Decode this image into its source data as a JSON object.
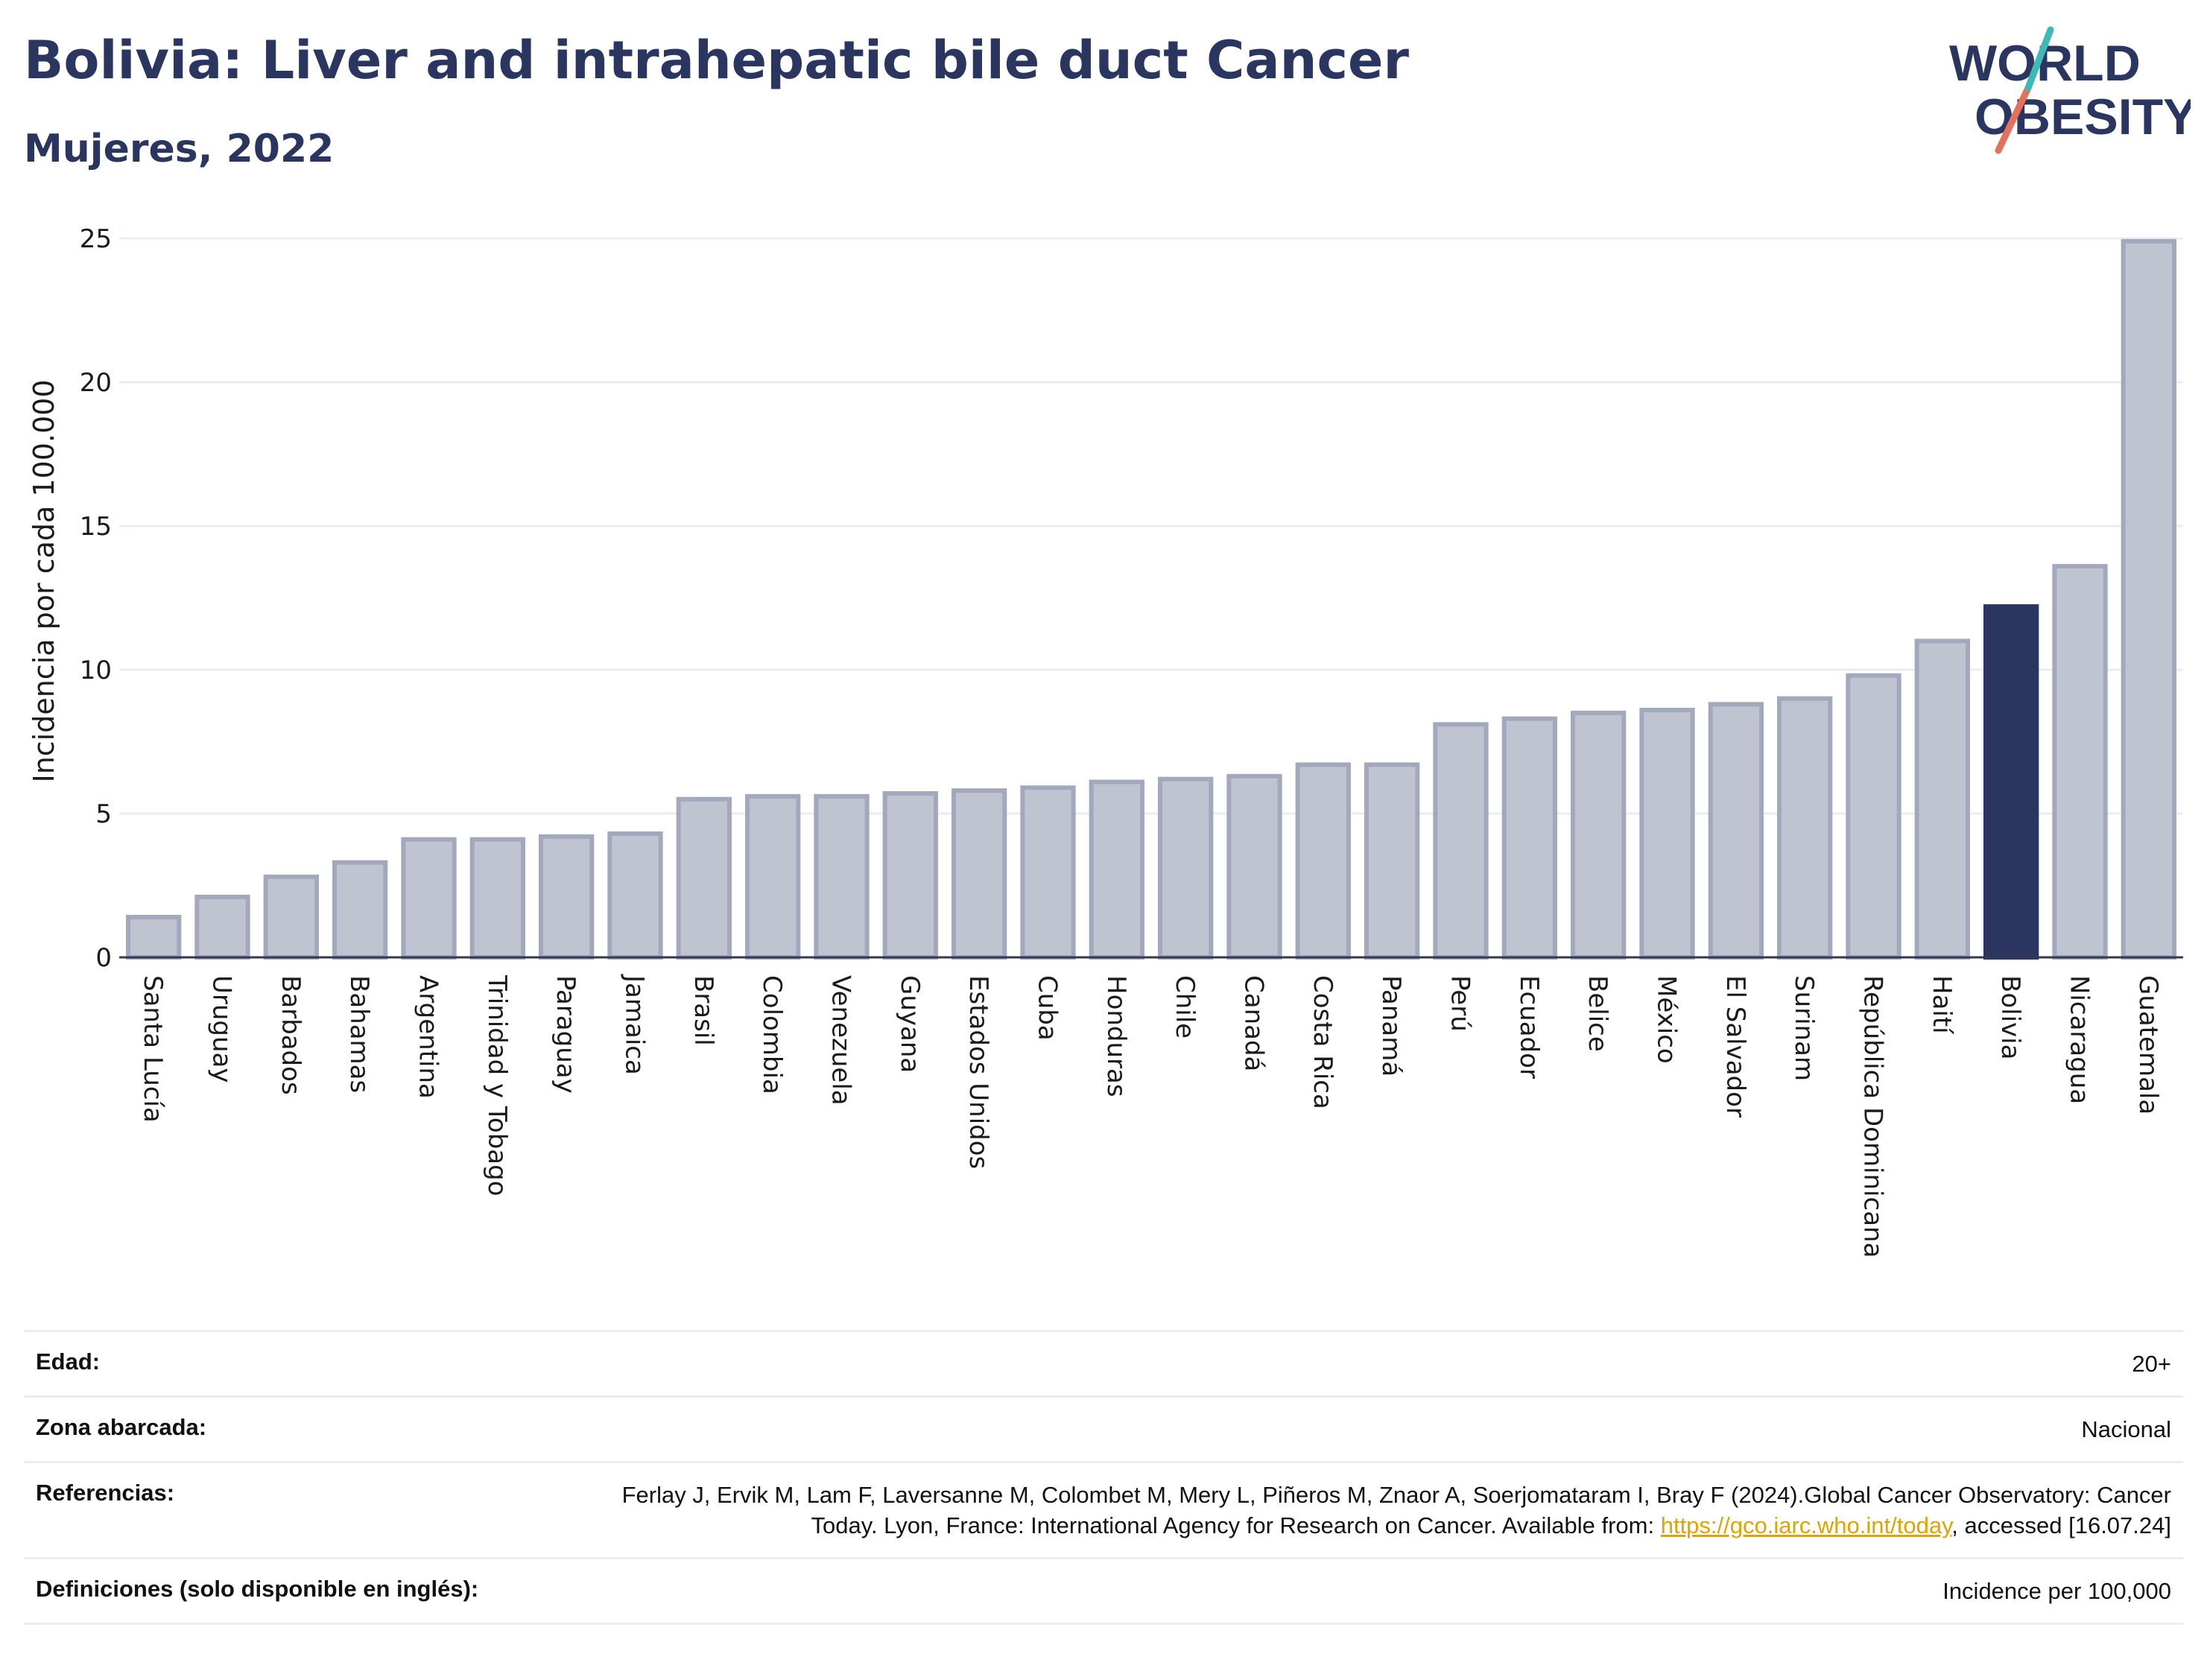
{
  "title": "Bolivia: Liver and intrahepatic bile duct Cancer",
  "subtitle": "Mujeres, 2022",
  "logo": {
    "line1": "WORLD",
    "line2": "OBESITY"
  },
  "colors": {
    "highlight": "#2b3660",
    "bar_fill": "#c0c4d1",
    "bar_border": "#a3a8bd",
    "grid": "#e9ecf0",
    "link": "#e0a400"
  },
  "chart_data": {
    "type": "bar",
    "ylabel": "Incidencia por cada 100.000",
    "ylim": [
      0,
      25
    ],
    "yticks": [
      0,
      5,
      10,
      15,
      20,
      25
    ],
    "grid": true,
    "highlight": "Bolivia",
    "categories": [
      "Santa Lucía",
      "Uruguay",
      "Barbados",
      "Bahamas",
      "Argentina",
      "Trinidad y Tobago",
      "Paraguay",
      "Jamaica",
      "Brasil",
      "Colombia",
      "Venezuela",
      "Guyana",
      "Estados Unidos",
      "Cuba",
      "Honduras",
      "Chile",
      "Canadá",
      "Costa Rica",
      "Panamá",
      "Perú",
      "Ecuador",
      "Belice",
      "México",
      "El Salvador",
      "Surinam",
      "República Dominicana",
      "Haití",
      "Bolivia",
      "Nicaragua",
      "Guatemala"
    ],
    "values": [
      1.4,
      2.1,
      2.8,
      3.3,
      4.1,
      4.1,
      4.2,
      4.3,
      5.5,
      5.6,
      5.6,
      5.7,
      5.8,
      5.9,
      6.1,
      6.2,
      6.3,
      6.7,
      6.7,
      8.1,
      8.3,
      8.5,
      8.6,
      8.8,
      9.0,
      9.8,
      11.0,
      12.2,
      13.6,
      24.9
    ]
  },
  "info": {
    "edad_label": "Edad:",
    "edad_value": "20+",
    "zona_label": "Zona abarcada:",
    "zona_value": "Nacional",
    "ref_label": "Referencias:",
    "ref_text_1": "Ferlay J, Ervik M, Lam F, Laversanne M, Colombet M, Mery L, Piñeros M, Znaor A, Soerjomataram I, Bray F (2024).Global Cancer Observatory: Cancer Today. Lyon, France: International Agency for Research on Cancer. Available from: ",
    "ref_link": "https://gco.iarc.who.int/today",
    "ref_text_2": ", accessed [16.07.24]",
    "def_label": "Definiciones (solo disponible en inglés):",
    "def_value": "Incidence per 100,000"
  }
}
